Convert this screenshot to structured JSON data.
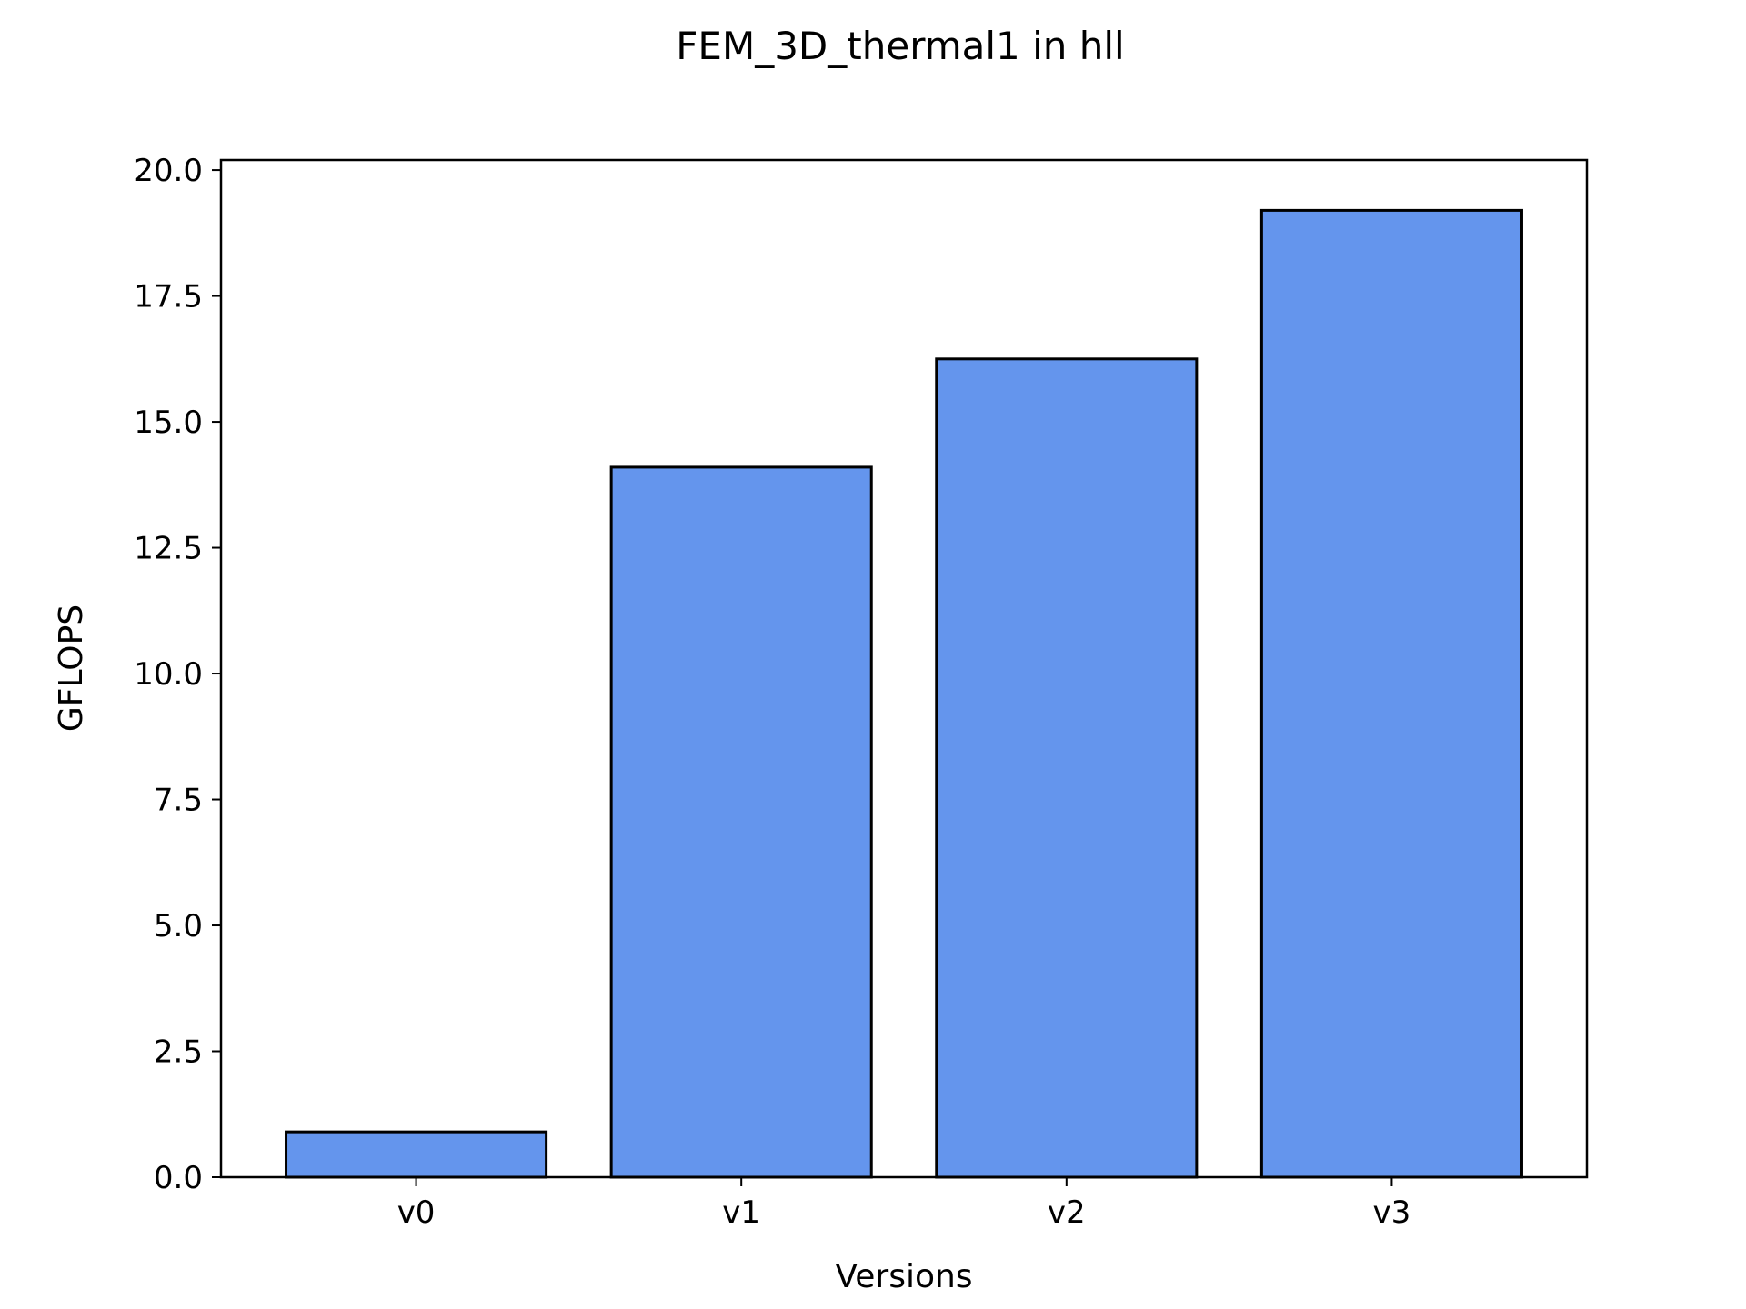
{
  "chart_data": {
    "type": "bar",
    "title": "FEM_3D_thermal1 in hll",
    "xlabel": "Versions",
    "ylabel": "GFLOPS",
    "categories": [
      "v0",
      "v1",
      "v2",
      "v3"
    ],
    "values": [
      0.9,
      14.1,
      16.25,
      19.2
    ],
    "ylim": [
      0,
      20.2
    ],
    "yticks": [
      0.0,
      2.5,
      5.0,
      7.5,
      10.0,
      12.5,
      15.0,
      17.5,
      20.0
    ],
    "ytick_labels": [
      "0.0",
      "2.5",
      "5.0",
      "7.5",
      "10.0",
      "12.5",
      "15.0",
      "17.5",
      "20.0"
    ],
    "bar_color": "#6495ED",
    "edge_color": "#000000",
    "grid": false,
    "legend": "none"
  }
}
